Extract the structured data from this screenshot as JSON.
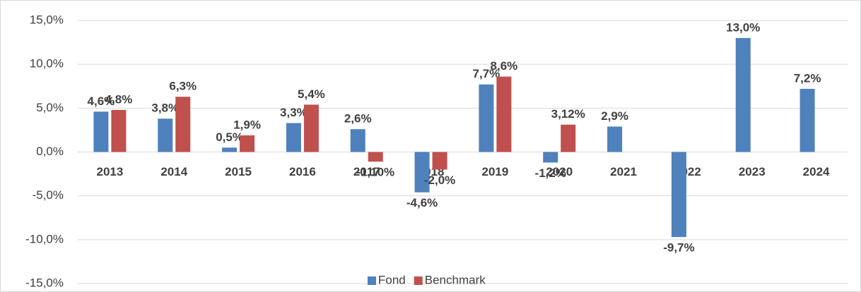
{
  "chart_data": {
    "type": "bar",
    "categories": [
      "2013",
      "2014",
      "2015",
      "2016",
      "2017",
      "2018",
      "2019",
      "2020",
      "2021",
      "2022",
      "2023",
      "2024"
    ],
    "series": [
      {
        "name": "Fond",
        "color": "#4f81bd",
        "values": [
          4.6,
          3.8,
          0.5,
          3.3,
          2.6,
          -4.6,
          7.7,
          -1.2,
          2.9,
          -9.7,
          13.0,
          7.2
        ],
        "value_labels": [
          "4,6%",
          "3,8%",
          "0,5%",
          "3,3%",
          "2,6%",
          "-4,6%",
          "7,7%",
          "-1,2%",
          "2,9%",
          "-9,7%",
          "13,0%",
          "7,2%"
        ]
      },
      {
        "name": "Benchmark",
        "color": "#c0504d",
        "values": [
          4.8,
          6.3,
          1.9,
          5.4,
          -1.1,
          -2.0,
          8.6,
          3.12,
          null,
          null,
          null,
          null
        ],
        "value_labels": [
          "4,8%",
          "6,3%",
          "1,9%",
          "5,4%",
          "-1,10%",
          "-2,0%",
          "8,6%",
          "3,12%",
          null,
          null,
          null,
          null
        ]
      }
    ],
    "ylim": [
      -15,
      15
    ],
    "yticks": [
      {
        "value": -15,
        "label": "-15,0%"
      },
      {
        "value": -10,
        "label": "-10,0%"
      },
      {
        "value": -5,
        "label": "-5,0%"
      },
      {
        "value": 0,
        "label": "0,0%"
      },
      {
        "value": 5,
        "label": "5,0%"
      },
      {
        "value": 10,
        "label": "10,0%"
      },
      {
        "value": 15,
        "label": "15,0%"
      }
    ],
    "grid": true,
    "legend": "bottom"
  }
}
